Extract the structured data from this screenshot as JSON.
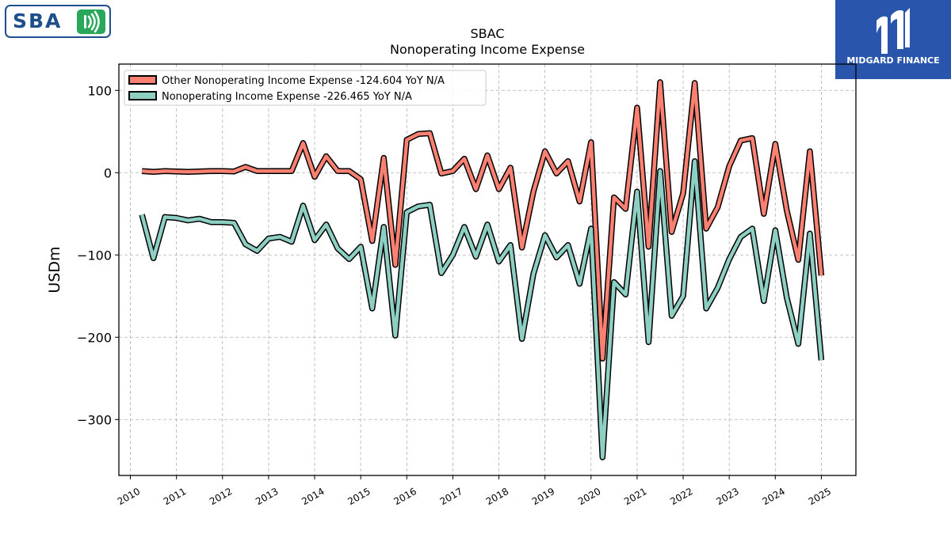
{
  "branding": {
    "left_logo_text": "SBA",
    "right_logo_text": "MIDGARD FINANCE",
    "left_logo_color": "#1f4e8c",
    "left_logo_accent": "#27a85a",
    "right_logo_bg": "#2a55ad"
  },
  "chart_data": {
    "type": "line",
    "title": "SBAC",
    "subtitle": "Nonoperating Income Expense",
    "ylabel": "USDm",
    "xlabel": "",
    "ylim": [
      -368,
      132
    ],
    "xlim": [
      2009.75,
      2025.75
    ],
    "yticks": [
      100,
      0,
      -100,
      -200,
      -300
    ],
    "ytick_labels": [
      "100",
      "0",
      "−100",
      "−200",
      "−300"
    ],
    "xticks": [
      2010,
      2011,
      2012,
      2013,
      2014,
      2015,
      2016,
      2017,
      2018,
      2019,
      2020,
      2021,
      2022,
      2023,
      2024,
      2025
    ],
    "xtick_labels": [
      "2010",
      "2011",
      "2012",
      "2013",
      "2014",
      "2015",
      "2016",
      "2017",
      "2018",
      "2019",
      "2020",
      "2021",
      "2022",
      "2023",
      "2024",
      "2025"
    ],
    "grid": true,
    "legend_position": "top-left",
    "series": [
      {
        "name": "Other Nonoperating Income Expense",
        "legend_label": "Other Nonoperating Income Expense  -124.604 YoY N/A",
        "color": "#fa8072",
        "points": [
          [
            2010.25,
            2
          ],
          [
            2010.5,
            1
          ],
          [
            2010.75,
            2
          ],
          [
            2011.0,
            1.5
          ],
          [
            2011.25,
            1
          ],
          [
            2011.5,
            1.5
          ],
          [
            2011.75,
            2
          ],
          [
            2012.0,
            2
          ],
          [
            2012.25,
            1.5
          ],
          [
            2012.5,
            7
          ],
          [
            2012.75,
            2
          ],
          [
            2013.0,
            2
          ],
          [
            2013.25,
            2
          ],
          [
            2013.5,
            2
          ],
          [
            2013.75,
            36
          ],
          [
            2014.0,
            -5
          ],
          [
            2014.25,
            20
          ],
          [
            2014.5,
            2
          ],
          [
            2014.75,
            2
          ],
          [
            2015.0,
            -8
          ],
          [
            2015.25,
            -83
          ],
          [
            2015.5,
            18
          ],
          [
            2015.75,
            -112
          ],
          [
            2016.0,
            40
          ],
          [
            2016.25,
            47
          ],
          [
            2016.5,
            48
          ],
          [
            2016.75,
            -1
          ],
          [
            2017.0,
            2
          ],
          [
            2017.25,
            17
          ],
          [
            2017.5,
            -20
          ],
          [
            2017.75,
            21
          ],
          [
            2018.0,
            -20
          ],
          [
            2018.25,
            6
          ],
          [
            2018.5,
            -91
          ],
          [
            2018.75,
            -23
          ],
          [
            2019.0,
            26
          ],
          [
            2019.25,
            -1
          ],
          [
            2019.5,
            14
          ],
          [
            2019.75,
            -35
          ],
          [
            2020.0,
            37
          ],
          [
            2020.25,
            -226
          ],
          [
            2020.5,
            -30
          ],
          [
            2020.75,
            -44
          ],
          [
            2021.0,
            79
          ],
          [
            2021.25,
            -90
          ],
          [
            2021.5,
            110
          ],
          [
            2021.75,
            -72
          ],
          [
            2022.0,
            -25
          ],
          [
            2022.25,
            109
          ],
          [
            2022.5,
            -68
          ],
          [
            2022.75,
            -42
          ],
          [
            2023.0,
            8
          ],
          [
            2023.25,
            39
          ],
          [
            2023.5,
            42
          ],
          [
            2023.75,
            -50
          ],
          [
            2024.0,
            35
          ],
          [
            2024.25,
            -46
          ],
          [
            2024.5,
            -106
          ],
          [
            2024.75,
            26
          ],
          [
            2025.0,
            -125
          ]
        ]
      },
      {
        "name": "Nonoperating Income Expense",
        "legend_label": "Nonoperating Income Expense  -226.465 YoY N/A",
        "color": "#8ecfc3",
        "points": [
          [
            2010.25,
            -51
          ],
          [
            2010.5,
            -104
          ],
          [
            2010.75,
            -54
          ],
          [
            2011.0,
            -55
          ],
          [
            2011.25,
            -58
          ],
          [
            2011.5,
            -56
          ],
          [
            2011.75,
            -60
          ],
          [
            2012.0,
            -60
          ],
          [
            2012.25,
            -61
          ],
          [
            2012.5,
            -87
          ],
          [
            2012.75,
            -95
          ],
          [
            2013.0,
            -80
          ],
          [
            2013.25,
            -78
          ],
          [
            2013.5,
            -84
          ],
          [
            2013.75,
            -40
          ],
          [
            2014.0,
            -82
          ],
          [
            2014.25,
            -63
          ],
          [
            2014.5,
            -92
          ],
          [
            2014.75,
            -105
          ],
          [
            2015.0,
            -90
          ],
          [
            2015.25,
            -165
          ],
          [
            2015.5,
            -66
          ],
          [
            2015.75,
            -198
          ],
          [
            2016.0,
            -48
          ],
          [
            2016.25,
            -41
          ],
          [
            2016.5,
            -39
          ],
          [
            2016.75,
            -122
          ],
          [
            2017.0,
            -100
          ],
          [
            2017.25,
            -66
          ],
          [
            2017.5,
            -102
          ],
          [
            2017.75,
            -63
          ],
          [
            2018.0,
            -108
          ],
          [
            2018.25,
            -88
          ],
          [
            2018.5,
            -202
          ],
          [
            2018.75,
            -123
          ],
          [
            2019.0,
            -76
          ],
          [
            2019.25,
            -103
          ],
          [
            2019.5,
            -88
          ],
          [
            2019.75,
            -135
          ],
          [
            2020.0,
            -68
          ],
          [
            2020.25,
            -346
          ],
          [
            2020.5,
            -133
          ],
          [
            2020.75,
            -148
          ],
          [
            2021.0,
            -23
          ],
          [
            2021.25,
            -206
          ],
          [
            2021.5,
            2
          ],
          [
            2021.75,
            -174
          ],
          [
            2022.0,
            -150
          ],
          [
            2022.25,
            14
          ],
          [
            2022.5,
            -165
          ],
          [
            2022.75,
            -140
          ],
          [
            2023.0,
            -105
          ],
          [
            2023.25,
            -78
          ],
          [
            2023.5,
            -68
          ],
          [
            2023.75,
            -156
          ],
          [
            2024.0,
            -70
          ],
          [
            2024.25,
            -152
          ],
          [
            2024.5,
            -208
          ],
          [
            2024.75,
            -74
          ],
          [
            2025.0,
            -228
          ]
        ]
      }
    ]
  }
}
